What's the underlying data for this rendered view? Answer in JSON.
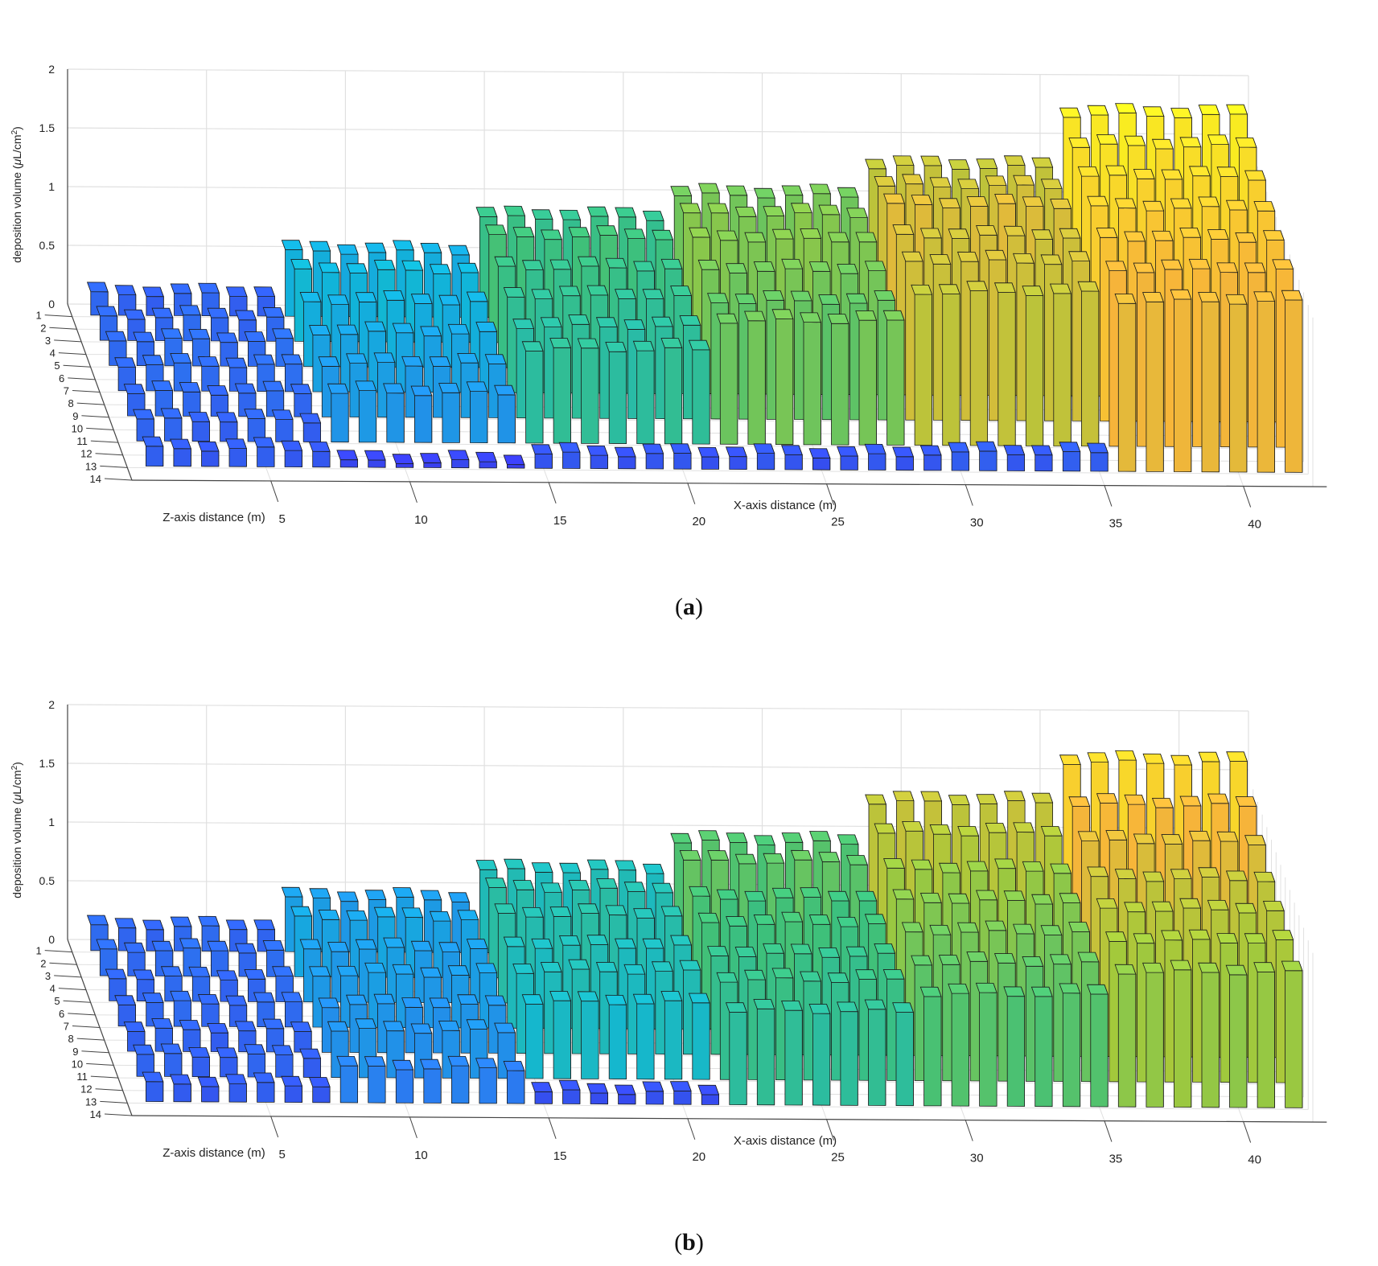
{
  "chart_data": [
    {
      "panel": "a",
      "type": "bar3d",
      "caption": "a",
      "xlabel": "X-axis distance (m)",
      "zlabel": "Z-axis distance (m)",
      "ylabel_main": "deposition volume (",
      "ylabel_mu": "μ",
      "ylabel_unit": "L/cm",
      "ylabel_sup": "2",
      "ylabel_close": ")",
      "ylim": [
        0,
        2
      ],
      "yticks": [
        "0",
        "0.5",
        "1",
        "1.5",
        "2"
      ],
      "xticks": [
        "5",
        "10",
        "15",
        "20",
        "25",
        "30",
        "35",
        "40"
      ],
      "xtick_values": [
        5,
        10,
        15,
        20,
        25,
        30,
        35,
        40
      ],
      "zticks": [
        "1",
        "2",
        "3",
        "4",
        "5",
        "6",
        "7",
        "8",
        "9",
        "10",
        "11",
        "12",
        "13",
        "14"
      ],
      "x_positions": [
        1,
        2,
        3,
        4,
        5,
        6,
        7,
        8,
        9,
        10,
        11,
        12,
        13,
        14,
        15,
        16,
        17,
        18,
        19,
        20,
        21,
        22,
        23,
        24,
        25,
        26,
        27,
        28,
        29,
        30,
        31,
        32,
        33,
        34,
        35,
        36,
        37,
        38,
        39,
        40,
        41,
        42
      ],
      "rows": [
        1,
        3,
        5,
        7,
        9,
        11,
        13
      ],
      "segments": [
        {
          "x_from": 1,
          "x_to": 7,
          "rows": [
            0.18,
            0.2,
            0.22,
            0.22,
            0.2,
            0.18,
            0.15
          ]
        },
        {
          "x_from": 8,
          "x_to": 14,
          "rows": [
            0.55,
            0.6,
            0.55,
            0.5,
            0.45,
            0.42,
            0.05
          ]
        },
        {
          "x_from": 15,
          "x_to": 21,
          "rows": [
            0.85,
            0.9,
            0.85,
            0.82,
            0.78,
            0.8,
            0.12
          ]
        },
        {
          "x_from": 22,
          "x_to": 28,
          "rows": [
            1.05,
            1.1,
            1.1,
            1.05,
            1.0,
            1.05,
            0.12
          ]
        },
        {
          "x_from": 29,
          "x_to": 35,
          "rows": [
            1.3,
            1.35,
            1.4,
            1.35,
            1.35,
            1.3,
            0.15
          ]
        },
        {
          "x_from": 36,
          "x_to": 42,
          "rows": [
            1.75,
            1.7,
            1.65,
            1.6,
            1.55,
            1.5,
            1.45
          ]
        }
      ]
    },
    {
      "panel": "b",
      "type": "bar3d",
      "caption": "b",
      "xlabel": "X-axis distance (m)",
      "zlabel": "Z-axis distance (m)",
      "ylabel_main": "deposition volume (",
      "ylabel_mu": "μ",
      "ylabel_unit": "L/cm",
      "ylabel_sup": "2",
      "ylabel_close": ")",
      "ylim": [
        0,
        2
      ],
      "yticks": [
        "0",
        "0.5",
        "1",
        "1.5",
        "2"
      ],
      "xticks": [
        "5",
        "10",
        "15",
        "20",
        "25",
        "30",
        "35",
        "40"
      ],
      "xtick_values": [
        5,
        10,
        15,
        20,
        25,
        30,
        35,
        40
      ],
      "zticks": [
        "1",
        "2",
        "3",
        "4",
        "5",
        "6",
        "7",
        "8",
        "9",
        "10",
        "11",
        "12",
        "13",
        "14"
      ],
      "x_positions": [
        1,
        2,
        3,
        4,
        5,
        6,
        7,
        8,
        9,
        10,
        11,
        12,
        13,
        14,
        15,
        16,
        17,
        18,
        19,
        20,
        21,
        22,
        23,
        24,
        25,
        26,
        27,
        28,
        29,
        30,
        31,
        32,
        33,
        34,
        35,
        36,
        37,
        38,
        39,
        40,
        41,
        42
      ],
      "rows": [
        1,
        3,
        5,
        7,
        9,
        11,
        13
      ],
      "segments": [
        {
          "x_from": 1,
          "x_to": 7,
          "rows": [
            0.2,
            0.22,
            0.2,
            0.2,
            0.18,
            0.18,
            0.15
          ]
        },
        {
          "x_from": 8,
          "x_to": 14,
          "rows": [
            0.45,
            0.5,
            0.45,
            0.45,
            0.4,
            0.4,
            0.3
          ]
        },
        {
          "x_from": 15,
          "x_to": 21,
          "rows": [
            0.7,
            0.75,
            0.75,
            0.7,
            0.7,
            0.65,
            0.1
          ]
        },
        {
          "x_from": 22,
          "x_to": 28,
          "rows": [
            0.95,
            1.0,
            0.9,
            0.9,
            0.85,
            0.85,
            0.8
          ]
        },
        {
          "x_from": 29,
          "x_to": 35,
          "rows": [
            1.3,
            1.25,
            1.15,
            1.1,
            1.05,
            1.0,
            0.95
          ]
        },
        {
          "x_from": 36,
          "x_to": 42,
          "rows": [
            1.65,
            1.5,
            1.4,
            1.3,
            1.25,
            1.2,
            1.15
          ]
        }
      ]
    }
  ],
  "colors": {
    "stops": [
      "#3b36ee",
      "#2a7ff0",
      "#10b6d8",
      "#3ec07a",
      "#a5c93a",
      "#f7b43a",
      "#f9f21e"
    ],
    "grid": "#e0e0e0",
    "axis": "#444444",
    "edge": "#1a1a1a"
  }
}
